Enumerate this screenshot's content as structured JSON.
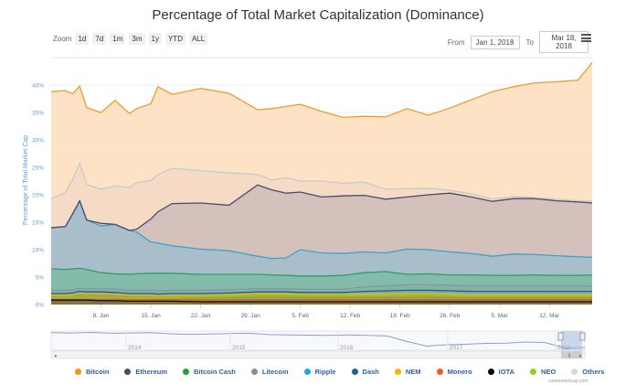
{
  "header": {
    "title": "Percentage of Total Market Capitalization (Dominance)"
  },
  "zoom": {
    "label": "Zoom",
    "buttons": [
      "1d",
      "7d",
      "1m",
      "3m",
      "1y",
      "YTD",
      "ALL"
    ]
  },
  "range": {
    "from_label": "From",
    "from_value": "Jan 1, 2018",
    "to_label": "To",
    "to_value": "Mar 18, 2018"
  },
  "menu_icon": "hamburger-menu-icon",
  "credit": "coinmarketcap.com",
  "chart_data": {
    "type": "area",
    "stacked": true,
    "title": "Percentage of Total Market Capitalization (Dominance)",
    "xlabel": "",
    "ylabel": "Percentage of Total Market Cap",
    "ylim": [
      0,
      45
    ],
    "yticks": [
      0,
      5,
      10,
      15,
      20,
      25,
      30,
      35,
      40
    ],
    "ytick_labels": [
      "0%",
      "5%",
      "10%",
      "15%",
      "20%",
      "25%",
      "30%",
      "35%",
      "40%"
    ],
    "x_day_range": [
      0,
      76
    ],
    "x_start": "Jan 1, 2018",
    "x_end": "Mar 18, 2018",
    "xtick_days": [
      7,
      14,
      21,
      28,
      35,
      42,
      49,
      56,
      63,
      70
    ],
    "xtick_labels": [
      "8. Jan",
      "15. Jan",
      "22. Jan",
      "29. Jan",
      "5. Feb",
      "12. Feb",
      "19. Feb",
      "26. Feb",
      "5. Mar",
      "12. Mar"
    ],
    "grid": true,
    "legend_position": "bottom",
    "x_days": [
      0,
      2,
      3,
      4,
      5,
      7,
      9,
      11,
      12,
      14,
      15,
      17,
      21,
      25,
      29,
      31,
      33,
      35,
      38,
      41,
      44,
      47,
      50,
      53,
      56,
      59,
      62,
      65,
      68,
      71,
      74,
      76
    ],
    "series": [
      {
        "name": "IOTA",
        "color": "#111111",
        "fill": "#7a6b3d",
        "values": [
          0.8,
          0.8,
          0.8,
          0.8,
          0.8,
          0.7,
          0.7,
          0.6,
          0.6,
          0.6,
          0.6,
          0.6,
          0.5,
          0.5,
          0.5,
          0.5,
          0.5,
          0.5,
          0.5,
          0.5,
          0.5,
          0.5,
          0.5,
          0.5,
          0.5,
          0.5,
          0.5,
          0.5,
          0.5,
          0.5,
          0.5,
          0.5
        ]
      },
      {
        "name": "Monero",
        "color": "#f15a22",
        "fill": "#8c7040",
        "values": [
          0.3,
          0.3,
          0.3,
          0.3,
          0.3,
          0.3,
          0.3,
          0.3,
          0.3,
          0.3,
          0.3,
          0.3,
          0.3,
          0.3,
          0.4,
          0.4,
          0.4,
          0.4,
          0.4,
          0.4,
          0.4,
          0.4,
          0.4,
          0.4,
          0.4,
          0.4,
          0.4,
          0.4,
          0.4,
          0.4,
          0.4,
          0.4
        ]
      },
      {
        "name": "NEO",
        "color": "#8cd01e",
        "fill": "#8fa044",
        "values": [
          0.1,
          0.1,
          0.1,
          0.1,
          0.1,
          0.2,
          0.2,
          0.2,
          0.3,
          0.3,
          0.3,
          0.4,
          0.6,
          0.7,
          0.8,
          0.8,
          0.8,
          0.7,
          0.7,
          0.7,
          0.7,
          0.7,
          0.8,
          0.8,
          0.7,
          0.6,
          0.6,
          0.6,
          0.6,
          0.6,
          0.6,
          0.6
        ]
      },
      {
        "name": "NEM",
        "color": "#f5b800",
        "fill": "#9aa052",
        "values": [
          0.5,
          0.5,
          0.6,
          0.9,
          0.8,
          0.8,
          0.7,
          0.6,
          0.5,
          0.5,
          0.4,
          0.4,
          0.3,
          0.3,
          0.3,
          0.3,
          0.3,
          0.3,
          0.3,
          0.3,
          0.3,
          0.3,
          0.3,
          0.3,
          0.3,
          0.3,
          0.3,
          0.3,
          0.3,
          0.3,
          0.3,
          0.3
        ]
      },
      {
        "name": "Dash",
        "color": "#1d5f91",
        "fill": "#7fa2a8",
        "values": [
          0.3,
          0.3,
          0.3,
          0.3,
          0.3,
          0.3,
          0.3,
          0.3,
          0.3,
          0.3,
          0.3,
          0.3,
          0.3,
          0.3,
          0.3,
          0.3,
          0.3,
          0.3,
          0.3,
          0.3,
          0.5,
          0.6,
          0.6,
          0.6,
          0.6,
          0.6,
          0.6,
          0.6,
          0.6,
          0.6,
          0.6,
          0.6
        ]
      },
      {
        "name": "Litecoin",
        "color": "#8a94a5",
        "fill": "#7ab0a0",
        "values": [
          0.6,
          0.6,
          0.6,
          0.6,
          0.6,
          0.6,
          0.6,
          0.6,
          0.6,
          0.6,
          0.6,
          0.6,
          0.6,
          0.6,
          0.6,
          0.6,
          0.6,
          0.6,
          0.6,
          0.6,
          0.8,
          0.9,
          1.0,
          1.0,
          1.0,
          1.0,
          1.0,
          1.0,
          1.0,
          1.0,
          1.0,
          1.0
        ]
      },
      {
        "name": "Bitcoin Cash",
        "color": "#2f9e62",
        "fill": "#7db8a8",
        "values": [
          3.9,
          3.8,
          3.8,
          3.6,
          3.5,
          2.9,
          2.8,
          2.9,
          3.0,
          3.1,
          3.2,
          3.1,
          2.9,
          2.8,
          2.6,
          2.5,
          2.4,
          2.4,
          2.4,
          2.5,
          2.6,
          2.6,
          1.9,
          2.0,
          1.9,
          2.0,
          1.9,
          1.9,
          2.0,
          1.9,
          1.9,
          2.0
        ]
      },
      {
        "name": "Ripple",
        "color": "#3aa3c8",
        "fill": "#a3bcc8",
        "values": [
          7.5,
          7.8,
          10.0,
          12.3,
          9.0,
          8.5,
          9.0,
          8.0,
          7.6,
          5.7,
          5.5,
          5.0,
          4.6,
          4.3,
          3.3,
          3.0,
          3.2,
          4.8,
          4.2,
          4.0,
          3.8,
          3.4,
          4.6,
          4.4,
          4.2,
          3.9,
          3.5,
          3.9,
          3.7,
          3.6,
          3.4,
          3.2
        ]
      },
      {
        "name": "Ethereum",
        "color": "#4b4a6b",
        "fill": "#d2beb8",
        "values": [
          0,
          0,
          0,
          0,
          0,
          0.5,
          0,
          0,
          0.5,
          4.2,
          5.7,
          7.7,
          8.4,
          8.3,
          13.0,
          12.5,
          11.8,
          10.5,
          10.2,
          10.5,
          10.3,
          9.8,
          9.5,
          10.0,
          10.7,
          10.3,
          10.0,
          10.1,
          10.2,
          10.0,
          10.0,
          9.9
        ]
      },
      {
        "name": "Others",
        "color": "#c9c9c9",
        "fill": "#f4d9c2",
        "values": [
          5.3,
          6.2,
          6.3,
          6.9,
          6.5,
          6.2,
          7.0,
          7.8,
          8.5,
          7.0,
          6.8,
          6.4,
          5.9,
          5.9,
          1.9,
          1.8,
          2.8,
          2.0,
          2.9,
          2.3,
          2.4,
          1.8,
          1.5,
          1.2,
          0.5,
          0.6,
          0.4,
          0.4,
          0.2,
          0.3,
          0.2,
          0.3
        ]
      },
      {
        "name": "Bitcoin",
        "color": "#f09b2a",
        "fill": "#fde0c2",
        "values": [
          19.5,
          18.6,
          15.6,
          14.0,
          14.0,
          14.0,
          15.6,
          13.5,
          13.5,
          14.0,
          16.0,
          13.5,
          15.0,
          14.5,
          11.8,
          13.0,
          13.0,
          14.0,
          12.7,
          12.0,
          12.0,
          13.2,
          14.6,
          13.3,
          15.0,
          17.1,
          19.6,
          20.0,
          20.9,
          21.4,
          22.0,
          25.3
        ]
      }
    ],
    "legend": [
      {
        "name": "Bitcoin",
        "color": "#f7931a"
      },
      {
        "name": "Ethereum",
        "color": "#4b4a6b"
      },
      {
        "name": "Bitcoin Cash",
        "color": "#2a9d36"
      },
      {
        "name": "Litecoin",
        "color": "#8c8c8c"
      },
      {
        "name": "Ripple",
        "color": "#23a6dd"
      },
      {
        "name": "Dash",
        "color": "#1c6399"
      },
      {
        "name": "NEM",
        "color": "#f6b600"
      },
      {
        "name": "Monero",
        "color": "#f15a22"
      },
      {
        "name": "IOTA",
        "color": "#000000"
      },
      {
        "name": "NEO",
        "color": "#8bd12a"
      },
      {
        "name": "Others",
        "color": "#d8d8d8"
      }
    ],
    "navigator": {
      "year_labels": [
        "2014",
        "2015",
        "2016",
        "2017",
        "2018"
      ],
      "selected_range": [
        "Jan 1, 2018",
        "Mar 18, 2018"
      ],
      "bitcoin_dominance_overview": [
        94,
        93,
        95,
        92,
        93,
        94,
        90,
        88,
        89,
        91,
        92,
        87,
        86,
        85,
        84,
        86,
        84,
        82,
        62,
        45,
        50,
        52,
        55,
        56,
        60,
        58,
        38,
        40
      ]
    }
  }
}
